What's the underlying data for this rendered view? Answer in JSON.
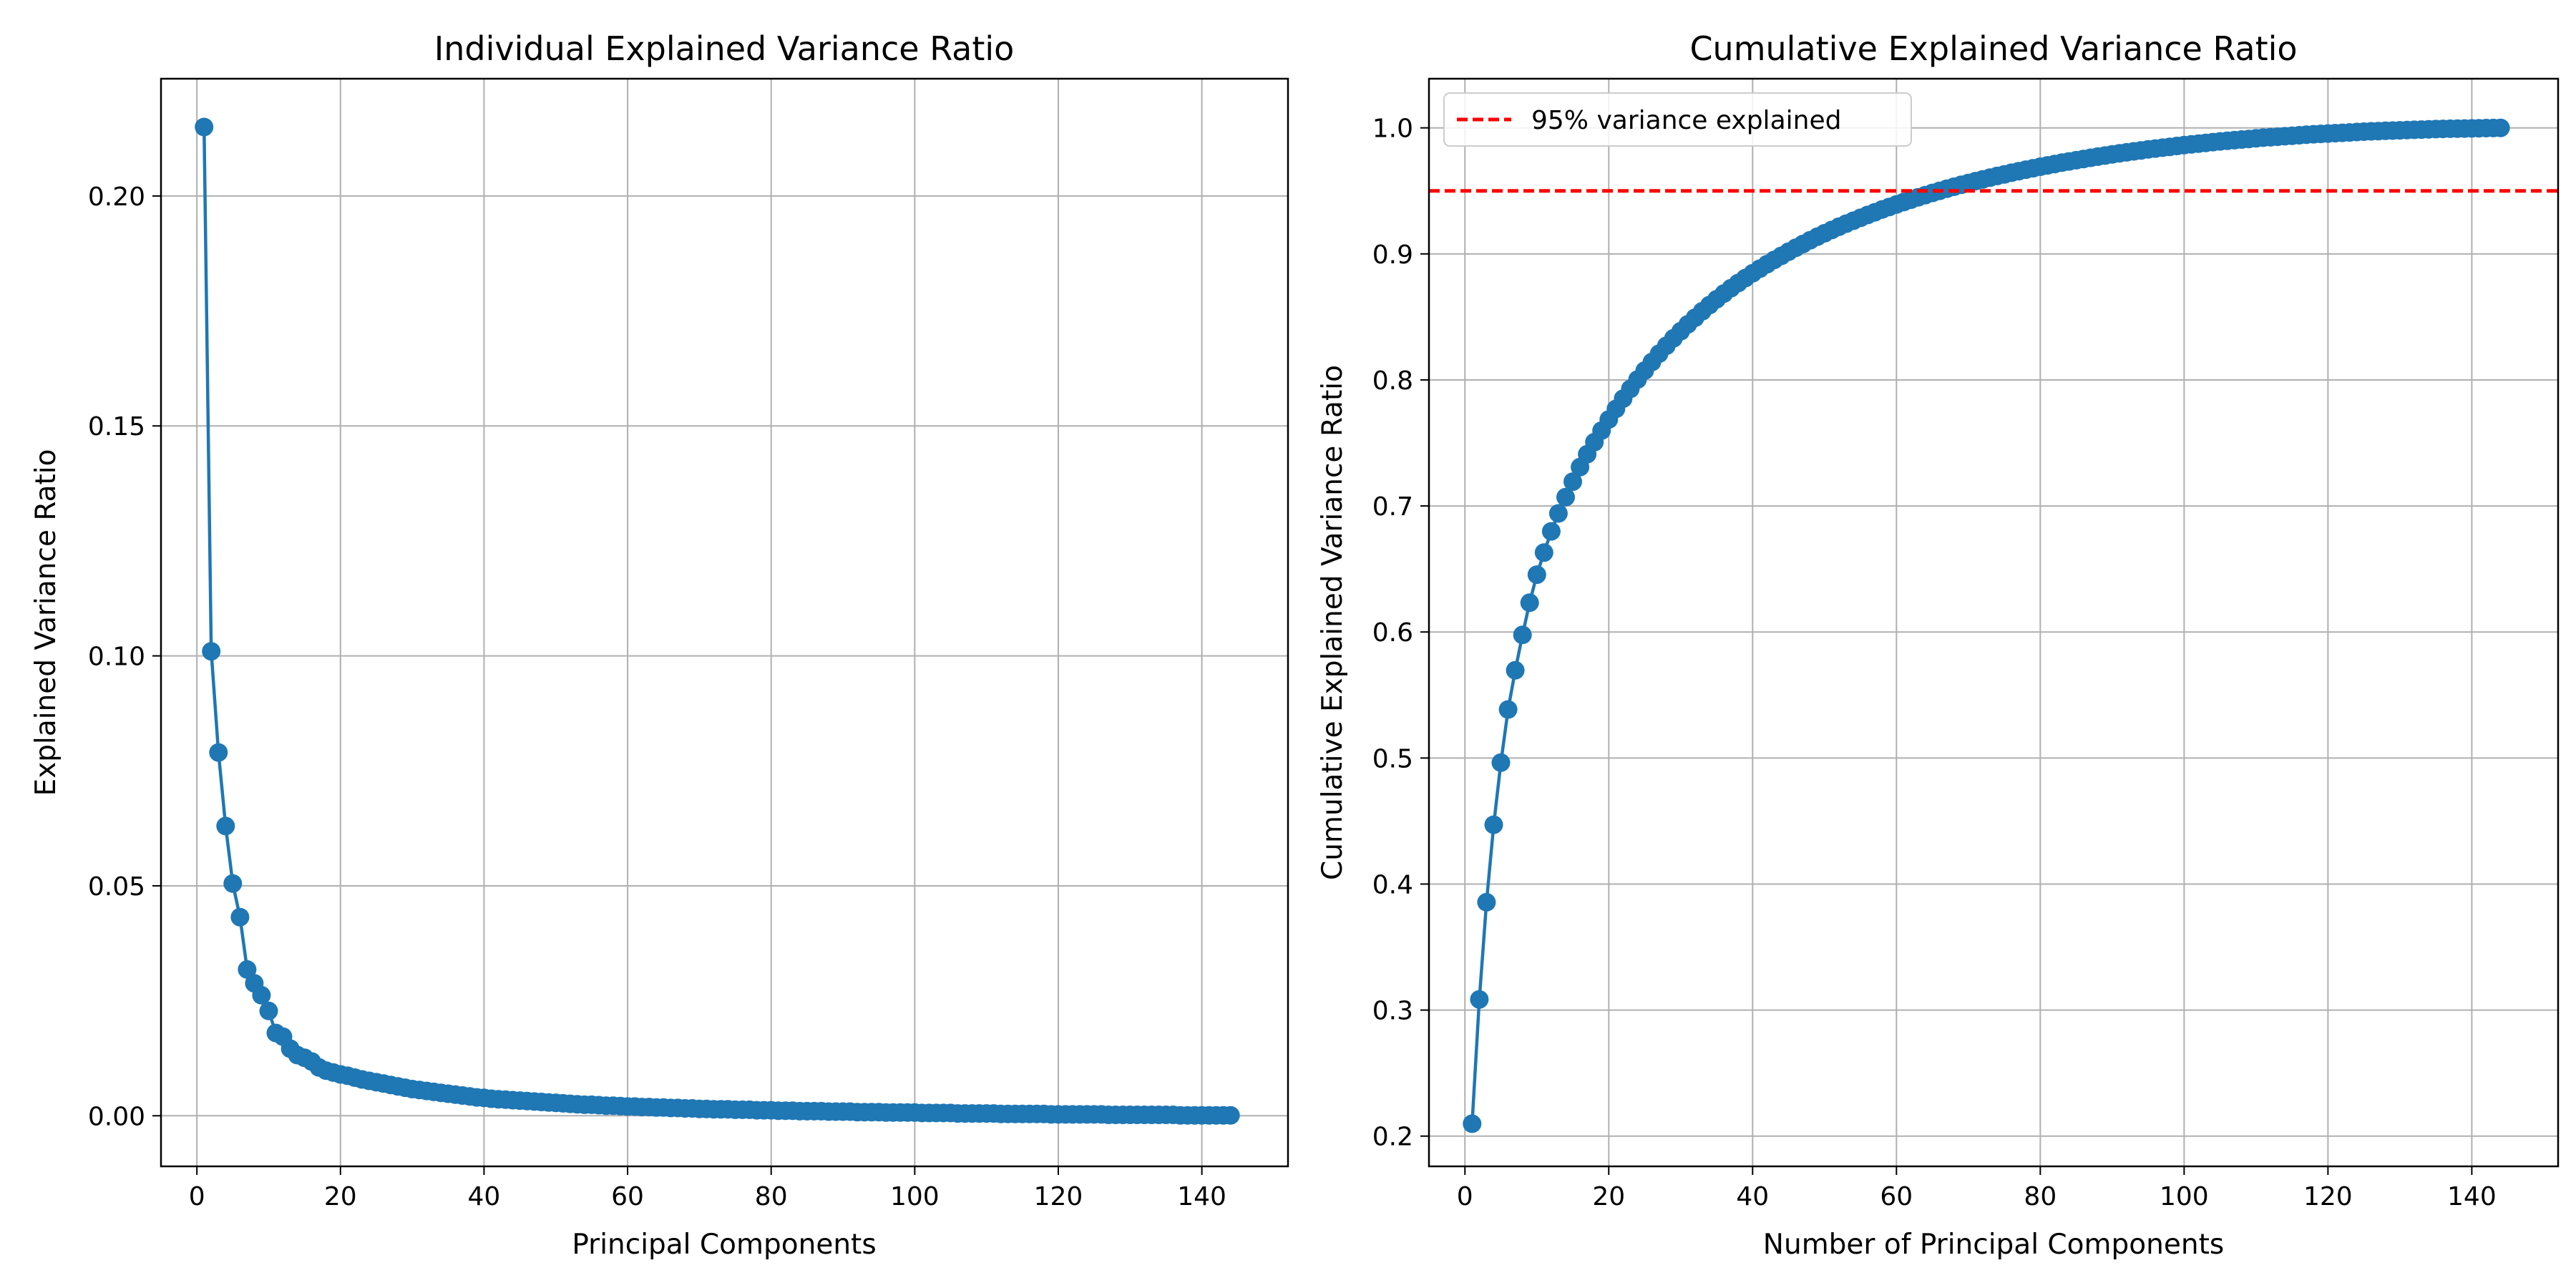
{
  "chart_data": [
    {
      "type": "line",
      "title": "Individual Explained Variance Ratio",
      "xlabel": "Principal Components",
      "ylabel": "Explained Variance Ratio",
      "xlim": [
        -5,
        152
      ],
      "ylim": [
        -0.011,
        0.2255
      ],
      "xticks": [
        0,
        20,
        40,
        60,
        80,
        100,
        120,
        140
      ],
      "xtick_labels": [
        "0",
        "20",
        "40",
        "60",
        "80",
        "100",
        "120",
        "140"
      ],
      "yticks": [
        0.0,
        0.05,
        0.1,
        0.15,
        0.2
      ],
      "ytick_labels": [
        "0.00",
        "0.05",
        "0.10",
        "0.15",
        "0.20"
      ],
      "grid": true,
      "series": [
        {
          "color": "#1f77b4",
          "marker": "circle",
          "x": [
            1,
            2,
            3,
            4,
            5,
            6,
            7,
            8,
            9,
            10,
            11,
            12,
            13,
            14,
            15,
            16,
            17,
            18,
            19,
            20,
            21,
            22,
            23,
            24,
            25,
            26,
            27,
            28,
            29,
            30,
            31,
            32,
            33,
            34,
            35,
            36,
            37,
            38,
            39,
            40,
            41,
            42,
            43,
            44,
            45,
            46,
            47,
            48,
            49,
            50,
            51,
            52,
            53,
            54,
            55,
            56,
            57,
            58,
            59,
            60,
            61,
            62,
            63,
            64,
            65,
            66,
            67,
            68,
            69,
            70,
            71,
            72,
            73,
            74,
            75,
            76,
            77,
            78,
            79,
            80,
            81,
            82,
            83,
            84,
            85,
            86,
            87,
            88,
            89,
            90,
            91,
            92,
            93,
            94,
            95,
            96,
            97,
            98,
            99,
            100,
            101,
            102,
            103,
            104,
            105,
            106,
            107,
            108,
            109,
            110,
            111,
            112,
            113,
            114,
            115,
            116,
            117,
            118,
            119,
            120,
            121,
            122,
            123,
            124,
            125,
            126,
            127,
            128,
            129,
            130,
            131,
            132,
            133,
            134,
            135,
            136,
            137,
            138,
            139,
            140,
            141,
            142,
            143,
            144
          ],
          "y": [
            0.215,
            0.101,
            0.079,
            0.063,
            0.0505,
            0.0432,
            0.0318,
            0.0288,
            0.0262,
            0.0228,
            0.018,
            0.0172,
            0.0146,
            0.0132,
            0.0126,
            0.0118,
            0.0105,
            0.0098,
            0.0094,
            0.009,
            0.0087,
            0.0083,
            0.0079,
            0.0076,
            0.0073,
            0.007,
            0.0067,
            0.0064,
            0.0061,
            0.0058,
            0.0056,
            0.0054,
            0.0052,
            0.005,
            0.0048,
            0.0046,
            0.0044,
            0.0042,
            0.004,
            0.0039,
            0.0037,
            0.0036,
            0.0035,
            0.0034,
            0.0033,
            0.0032,
            0.0031,
            0.003,
            0.0029,
            0.0028,
            0.0027,
            0.0026,
            0.0025,
            0.0024,
            0.0024,
            0.0023,
            0.0022,
            0.0022,
            0.0021,
            0.002,
            0.002,
            0.0019,
            0.0019,
            0.0018,
            0.0018,
            0.0017,
            0.0017,
            0.0016,
            0.0016,
            0.0015,
            0.0015,
            0.0014,
            0.0014,
            0.0014,
            0.0013,
            0.0013,
            0.0013,
            0.0012,
            0.0012,
            0.0012,
            0.0011,
            0.0011,
            0.0011,
            0.001,
            0.001,
            0.001,
            0.001,
            0.0009,
            0.0009,
            0.0009,
            0.0009,
            0.0008,
            0.0008,
            0.0008,
            0.0008,
            0.0007,
            0.0007,
            0.0007,
            0.0007,
            0.0007,
            0.0006,
            0.0006,
            0.0006,
            0.0006,
            0.0006,
            0.0005,
            0.0005,
            0.0005,
            0.0005,
            0.0005,
            0.0005,
            0.0004,
            0.0004,
            0.0004,
            0.0004,
            0.0004,
            0.0004,
            0.0004,
            0.0003,
            0.0003,
            0.0003,
            0.0003,
            0.0003,
            0.0003,
            0.0003,
            0.0003,
            0.0002,
            0.0002,
            0.0002,
            0.0002,
            0.0002,
            0.0002,
            0.0002,
            0.0002,
            0.0002,
            0.0002,
            0.0001,
            0.0001,
            0.0001,
            0.0001,
            0.0001,
            0.0001,
            0.0001,
            0.0001
          ]
        }
      ]
    },
    {
      "type": "line",
      "title": "Cumulative Explained Variance Ratio",
      "xlabel": "Number of Principal Components",
      "ylabel": "Cumulative Explained Variance Ratio",
      "xlim": [
        -5,
        152
      ],
      "ylim": [
        0.176,
        1.039
      ],
      "xticks": [
        0,
        20,
        40,
        60,
        80,
        100,
        120,
        140
      ],
      "xtick_labels": [
        "0",
        "20",
        "40",
        "60",
        "80",
        "100",
        "120",
        "140"
      ],
      "yticks": [
        0.2,
        0.3,
        0.4,
        0.5,
        0.6,
        0.7,
        0.8,
        0.9,
        1.0
      ],
      "ytick_labels": [
        "0.2",
        "0.3",
        "0.4",
        "0.5",
        "0.6",
        "0.7",
        "0.8",
        "0.9",
        "1.0"
      ],
      "grid": true,
      "legend_position": "upper-left",
      "series": [
        {
          "color": "#1f77b4",
          "marker": "circle",
          "cumulative_of": "previous chart"
        }
      ],
      "hlines": [
        {
          "y": 0.95,
          "color": "#ff0000",
          "style": "dashed",
          "label": "95% variance explained"
        }
      ]
    }
  ]
}
